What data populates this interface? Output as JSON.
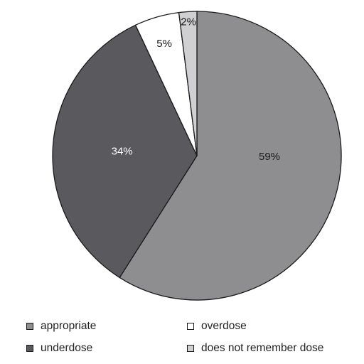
{
  "chart_data": {
    "type": "pie",
    "title": "",
    "labels": [
      "appropriate",
      "underdose",
      "overdose",
      "does not remember dose"
    ],
    "values": [
      59,
      34,
      5,
      2
    ],
    "value_labels": [
      "59%",
      "34%",
      "5%",
      "2%"
    ],
    "colors": [
      "#8e8e90",
      "#5a5a5e",
      "#ffffff",
      "#d0d0d2"
    ],
    "label_colors": [
      "#1a1a1a",
      "#ffffff",
      "#1a1a1a",
      "#1a1a1a"
    ],
    "start_angle_deg": 0,
    "direction": "clockwise",
    "legend_position": "bottom",
    "legend": [
      {
        "label": "appropriate",
        "color": "#8e8e90"
      },
      {
        "label": "overdose",
        "color": "#ffffff"
      },
      {
        "label": "underdose",
        "color": "#5a5a5e"
      },
      {
        "label": "does not remember dose",
        "color": "#d0d0d2"
      }
    ]
  }
}
